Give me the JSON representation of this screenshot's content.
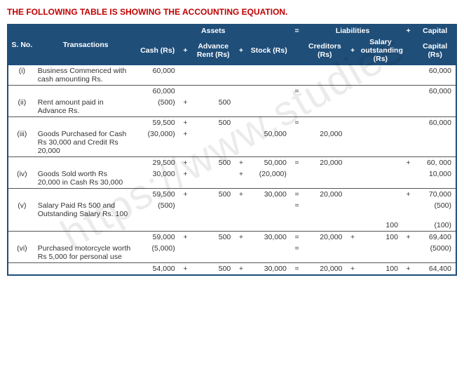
{
  "title": "THE FOLLOWING TABLE IS SHOWING THE ACCOUNTING EQUATION.",
  "watermark": "https://www.studies",
  "headers": {
    "sno": "S. No.",
    "trans": "Transactions",
    "assets": "Assets",
    "cash": "Cash (Rs)",
    "advrent": "Advance Rent (Rs)",
    "stock": "Stock (Rs)",
    "eq": "=",
    "liab": "Liabilities",
    "creditors": "Creditors (Rs)",
    "salout": "Salary outstanding (Rs)",
    "plus": "+",
    "capitalTop": "Capital",
    "capital": "Capital (Rs)"
  },
  "rows": [
    {
      "type": "data",
      "sno": "(i)",
      "trans": "Business Commenced with cash amounting Rs.",
      "cash": "60,000",
      "op1": "",
      "adv": "",
      "op2": "",
      "stock": "",
      "eq": "",
      "cred": "",
      "op3": "",
      "sal": "",
      "op4": "",
      "cap": "60,000"
    },
    {
      "type": "subtotal",
      "cash": "60,000",
      "op1": "",
      "adv": "",
      "op2": "",
      "stock": "",
      "eq": "=",
      "cred": "",
      "op3": "",
      "sal": "",
      "op4": "",
      "cap": "60,000"
    },
    {
      "type": "data",
      "sno": "(ii)",
      "trans": "Rent amount paid in Advance Rs.",
      "cash": "(500)",
      "op1": "+",
      "adv": "500",
      "op2": "",
      "stock": "",
      "eq": "",
      "cred": "",
      "op3": "",
      "sal": "",
      "op4": "",
      "cap": ""
    },
    {
      "type": "subtotal",
      "cash": "59,500",
      "op1": "+",
      "adv": "500",
      "op2": "",
      "stock": "",
      "eq": "=",
      "cred": "",
      "op3": "",
      "sal": "",
      "op4": "",
      "cap": "60,000"
    },
    {
      "type": "data",
      "sno": "(iii)",
      "trans": "Goods Purchased for Cash Rs 30,000 and Credit Rs 20,000",
      "cash": "(30,000)",
      "op1": "+",
      "adv": "",
      "op2": "",
      "stock": "50,000",
      "eq": "",
      "cred": "20,000",
      "op3": "",
      "sal": "",
      "op4": "",
      "cap": ""
    },
    {
      "type": "subtotal",
      "cash": "29,500",
      "op1": "+",
      "adv": "500",
      "op2": "+",
      "stock": "50,000",
      "eq": "=",
      "cred": "20,000",
      "op3": "",
      "sal": "",
      "op4": "+",
      "cap": "60, 000"
    },
    {
      "type": "data",
      "sno": "(iv)",
      "trans": "Goods Sold worth Rs 20,000 in Cash Rs 30,000",
      "cash": "30,000",
      "op1": "+",
      "adv": "",
      "op2": "+",
      "stock": "(20,000)",
      "eq": "",
      "cred": "",
      "op3": "",
      "sal": "",
      "op4": "",
      "cap": "10,000"
    },
    {
      "type": "subtotal",
      "cash": "59,500",
      "op1": "+",
      "adv": "500",
      "op2": "+",
      "stock": "30,000",
      "eq": "=",
      "cred": "20,000",
      "op3": "",
      "sal": "",
      "op4": "+",
      "cap": "70,000"
    },
    {
      "type": "data",
      "sno": "(v)",
      "trans": "Salary Paid Rs 500 and Outstanding Salary Rs. 100",
      "cash": "(500)",
      "op1": "",
      "adv": "",
      "op2": "",
      "stock": "",
      "eq": "=",
      "cred": "",
      "op3": "",
      "sal": "",
      "op4": "",
      "cap": "(500)"
    },
    {
      "type": "data",
      "sno": "",
      "trans": "",
      "cash": "",
      "op1": "",
      "adv": "",
      "op2": "",
      "stock": "",
      "eq": "",
      "cred": "",
      "op3": "",
      "sal": "100",
      "op4": "",
      "cap": "(100)"
    },
    {
      "type": "subtotal",
      "cash": "59,000",
      "op1": "+",
      "adv": "500",
      "op2": "+",
      "stock": "30,000",
      "eq": "=",
      "cred": "20,000",
      "op3": "+",
      "sal": "100",
      "op4": "+",
      "cap": "69,400"
    },
    {
      "type": "data",
      "sno": "(vi)",
      "trans": "Purchased motorcycle worth Rs 5,000 for personal use",
      "cash": "(5,000)",
      "op1": "",
      "adv": "",
      "op2": "",
      "stock": "",
      "eq": "=",
      "cred": "",
      "op3": "",
      "sal": "",
      "op4": "",
      "cap": "(5000)"
    },
    {
      "type": "lastrow",
      "cash": "54,000",
      "op1": "+",
      "adv": "500",
      "op2": "+",
      "stock": "30,000",
      "eq": "=",
      "cred": "20,000",
      "op3": "+",
      "sal": "100",
      "op4": "+",
      "cap": "64,400"
    }
  ]
}
